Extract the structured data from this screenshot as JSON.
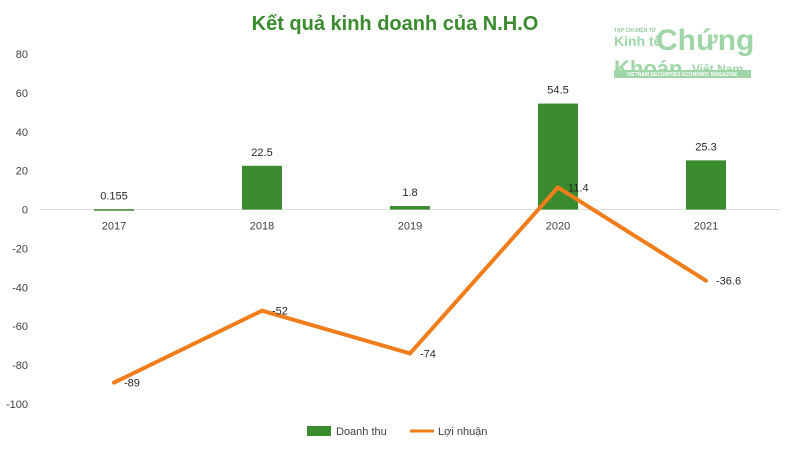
{
  "chart_data": {
    "type": "bar",
    "title": "Kết quả kinh doanh của N.H.O",
    "categories": [
      "2017",
      "2018",
      "2019",
      "2020",
      "2021"
    ],
    "series": [
      {
        "name": "Doanh thu",
        "type": "bar",
        "color": "#3a8a2e",
        "values": [
          0.155,
          22.5,
          1.8,
          54.5,
          25.3
        ],
        "labels": [
          "0.155",
          "22.5",
          "1.8",
          "54.5",
          "25.3"
        ]
      },
      {
        "name": "Lợi nhuận",
        "type": "line",
        "color": "#f07d1a",
        "values": [
          -89,
          -52,
          -74,
          11.4,
          -36.6
        ],
        "labels": [
          "-89",
          "-52",
          "-74",
          "11.4",
          "-36.6"
        ]
      }
    ],
    "ylim": [
      -100,
      80
    ],
    "yticks": [
      80,
      60,
      40,
      20,
      0,
      -20,
      -40,
      -60,
      -80,
      -100
    ],
    "grid": false,
    "legend_position": "bottom-center"
  },
  "logo": {
    "top_text": "TẠP CHÍ ĐIỆN TỬ",
    "line1_left": "Kinh tế",
    "line1_right": "Chứng",
    "line2_left": "Khoán",
    "line2_right": "Việt Nam",
    "bottom_text": "VIETNAM SECURITIES ECONOMIC MAGAZINE"
  },
  "colors": {
    "title": "#3a8a2e",
    "axis": "#bfbfbf"
  }
}
